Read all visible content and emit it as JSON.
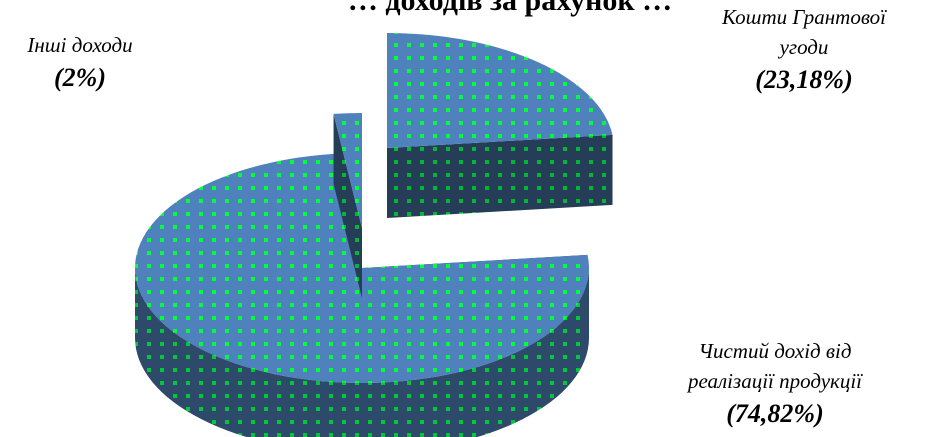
{
  "title": "… доходів за рахунок …",
  "chart_data": {
    "type": "pie",
    "title": "",
    "style": "3d-exploded",
    "slices": [
      {
        "name": "Інші доходи",
        "value": 2,
        "label": "(2%)"
      },
      {
        "name": "Кошти Грантової угоди",
        "value": 23.18,
        "label": "(23,18%)"
      },
      {
        "name": "Чистий дохід від реалізації продукції",
        "value": 74.82,
        "label": "(74,82%)"
      }
    ],
    "colors": {
      "top": "#4f81bd",
      "side": "#2e4a6b",
      "pattern_dots": "#00ff3a"
    }
  },
  "labels": {
    "other": {
      "name": "Інші доходи",
      "pct": "(2%)"
    },
    "grant": {
      "name_line1": "Кошти Грантової",
      "name_line2": "угоди",
      "pct": "(23,18%)"
    },
    "revenue": {
      "name_line1": "Чистий дохід від",
      "name_line2": "реалізації продукції",
      "pct": "(74,82%)"
    }
  }
}
